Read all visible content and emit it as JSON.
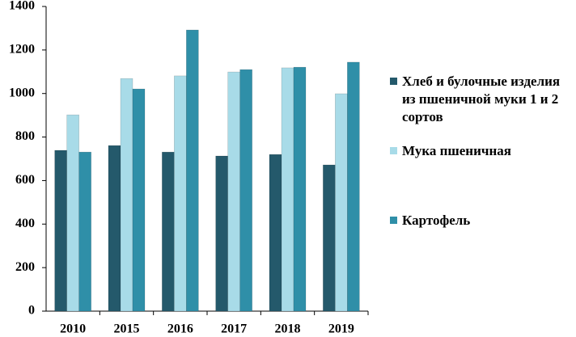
{
  "chart_data": {
    "type": "bar",
    "categories": [
      "2010",
      "2015",
      "2016",
      "2017",
      "2018",
      "2019"
    ],
    "series": [
      {
        "name": "Хлеб и булочные изделия из пшеничной муки 1 и 2 сортов",
        "color": "#24596b",
        "values": [
          739,
          761,
          731,
          713,
          720,
          672
        ]
      },
      {
        "name": "Мука пшеничная",
        "color": "#a8dbe8",
        "values": [
          902,
          1069,
          1081,
          1099,
          1118,
          999
        ]
      },
      {
        "name": "Картофель",
        "color": "#2f8fa8",
        "values": [
          731,
          1021,
          1292,
          1110,
          1121,
          1144
        ]
      }
    ],
    "ylim": [
      0,
      1400
    ],
    "yticks": [
      0,
      200,
      400,
      600,
      800,
      1000,
      1200,
      1400
    ],
    "legend": "right"
  }
}
